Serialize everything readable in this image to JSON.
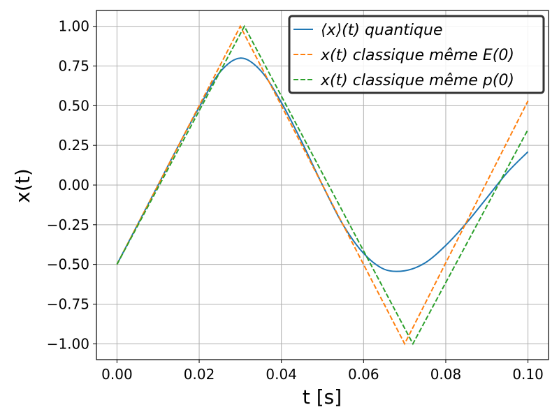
{
  "chart_data": {
    "type": "line",
    "xlabel": "t [s]",
    "ylabel": "x(t)",
    "xlim": [
      -0.005,
      0.105
    ],
    "ylim": [
      -1.1,
      1.1
    ],
    "grid": true,
    "legend_position": "top-right",
    "x_ticks": [
      0.0,
      0.02,
      0.04,
      0.06,
      0.08,
      0.1
    ],
    "x_tick_labels": [
      "0.00",
      "0.02",
      "0.04",
      "0.06",
      "0.08",
      "0.10"
    ],
    "y_ticks": [
      1.0,
      0.75,
      0.5,
      0.25,
      0.0,
      -0.25,
      -0.5,
      -0.75,
      -1.0
    ],
    "y_tick_labels": [
      "1.00",
      "0.75",
      "0.50",
      "0.25",
      "0.00",
      "−0.25",
      "−0.50",
      "−0.75",
      "−1.00"
    ],
    "series": [
      {
        "name": "⟨x⟩(t) quantique",
        "color": "#1f77b4",
        "dashed": false,
        "x": [
          0.0,
          0.005,
          0.01,
          0.015,
          0.02,
          0.025,
          0.03,
          0.035,
          0.04,
          0.045,
          0.05,
          0.055,
          0.06,
          0.065,
          0.07,
          0.075,
          0.08,
          0.085,
          0.09,
          0.095,
          0.1
        ],
        "y": [
          -0.5,
          -0.25,
          0.0,
          0.25,
          0.49,
          0.71,
          0.8,
          0.72,
          0.52,
          0.27,
          0.0,
          -0.25,
          -0.43,
          -0.53,
          -0.54,
          -0.49,
          -0.38,
          -0.24,
          -0.08,
          0.08,
          0.21
        ]
      },
      {
        "name": "x(t) classique même E(0)",
        "color": "#ff7f0e",
        "dashed": true,
        "x": [
          0.0,
          0.03,
          0.07,
          0.1
        ],
        "y": [
          -0.5,
          1.0,
          -1.0,
          0.53
        ]
      },
      {
        "name": "x(t) classique même p(0)",
        "color": "#2ca02c",
        "dashed": true,
        "x": [
          0.0,
          0.031,
          0.072,
          0.1
        ],
        "y": [
          -0.5,
          1.0,
          -1.0,
          0.35
        ]
      }
    ]
  }
}
